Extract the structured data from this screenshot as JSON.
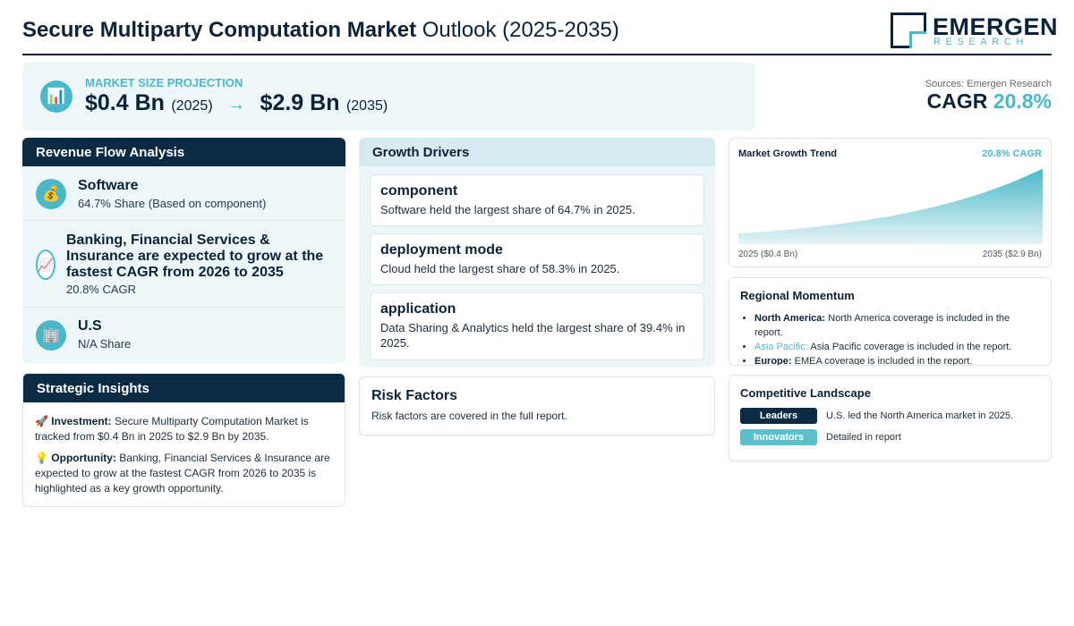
{
  "header": {
    "title_bold": "Secure Multiparty Computation Market",
    "title_rest": "Outlook (2025-2035)",
    "logo_name": "EMERGEN",
    "logo_sub": "RESEARCH"
  },
  "projection": {
    "label": "MARKET SIZE PROJECTION",
    "icon": "bar-chart-icon",
    "start_value": "$0.4 Bn",
    "start_year": "(2025)",
    "arrow": "→",
    "end_value": "$2.9 Bn",
    "end_year": "(2035)"
  },
  "summary": {
    "sources": "Sources: Emergen Research",
    "cagr_label": "CAGR",
    "cagr_value": "20.8%"
  },
  "revenue": {
    "heading": "Revenue Flow Analysis",
    "items": [
      {
        "icon": "money-bag-icon",
        "title": "Software",
        "subtitle": "64.7% Share (Based on component)"
      },
      {
        "icon": "trend-up-icon",
        "title": "Banking, Financial Services & Insurance are expected to grow at the fastest CAGR from 2026 to 2035",
        "subtitle": "20.8% CAGR"
      },
      {
        "icon": "building-icon",
        "title": "U.S",
        "subtitle": "N/A Share"
      }
    ]
  },
  "insights": {
    "heading": "Strategic Insights",
    "investment_label": "Investment:",
    "investment_text": "Secure Multiparty Computation Market is tracked from $0.4 Bn in 2025 to $2.9 Bn by 2035.",
    "opportunity_label": "Opportunity:",
    "opportunity_text": "Banking, Financial Services & Insurance are expected to grow at the fastest CAGR from 2026 to 2035 is highlighted as a key growth opportunity."
  },
  "drivers": {
    "heading": "Growth Drivers",
    "items": [
      {
        "title": "component",
        "text": "Software held the largest share of 64.7% in 2025."
      },
      {
        "title": "deployment mode",
        "text": "Cloud held the largest share of 58.3% in 2025."
      },
      {
        "title": "application",
        "text": "Data Sharing & Analytics held the largest share of 39.4% in 2025."
      }
    ]
  },
  "risk": {
    "heading": "Risk Factors",
    "text": "Risk factors are covered in the full report."
  },
  "trend": {
    "title": "Market Growth Trend",
    "cagr": "20.8% CAGR",
    "start_label": "2025 ($0.4 Bn)",
    "end_label": "2035 ($2.9 Bn)",
    "color_top": "#4bb8c9",
    "color_bottom": "#e6f4f7"
  },
  "chart_data": {
    "type": "area",
    "x": [
      2025,
      2035
    ],
    "values": [
      0.4,
      2.9
    ],
    "title": "Market Growth Trend",
    "xlabel": "",
    "ylabel": ""
  },
  "regional": {
    "heading": "Regional Momentum",
    "items": [
      {
        "name": "North America:",
        "text": "North America coverage is included in the report."
      },
      {
        "name": "Asia Pacific:",
        "text": "Asia Pacific coverage is included in the report."
      },
      {
        "name": "Europe:",
        "text": "EMEA coverage is included in the report."
      }
    ]
  },
  "competitive": {
    "heading": "Competitive Landscape",
    "rows": [
      {
        "tag": "Leaders",
        "color": "#0b2b45",
        "text": "U.S. led the North America market in 2025."
      },
      {
        "tag": "Innovators",
        "color": "#5bbfce",
        "text": "Detailed in report"
      }
    ]
  }
}
